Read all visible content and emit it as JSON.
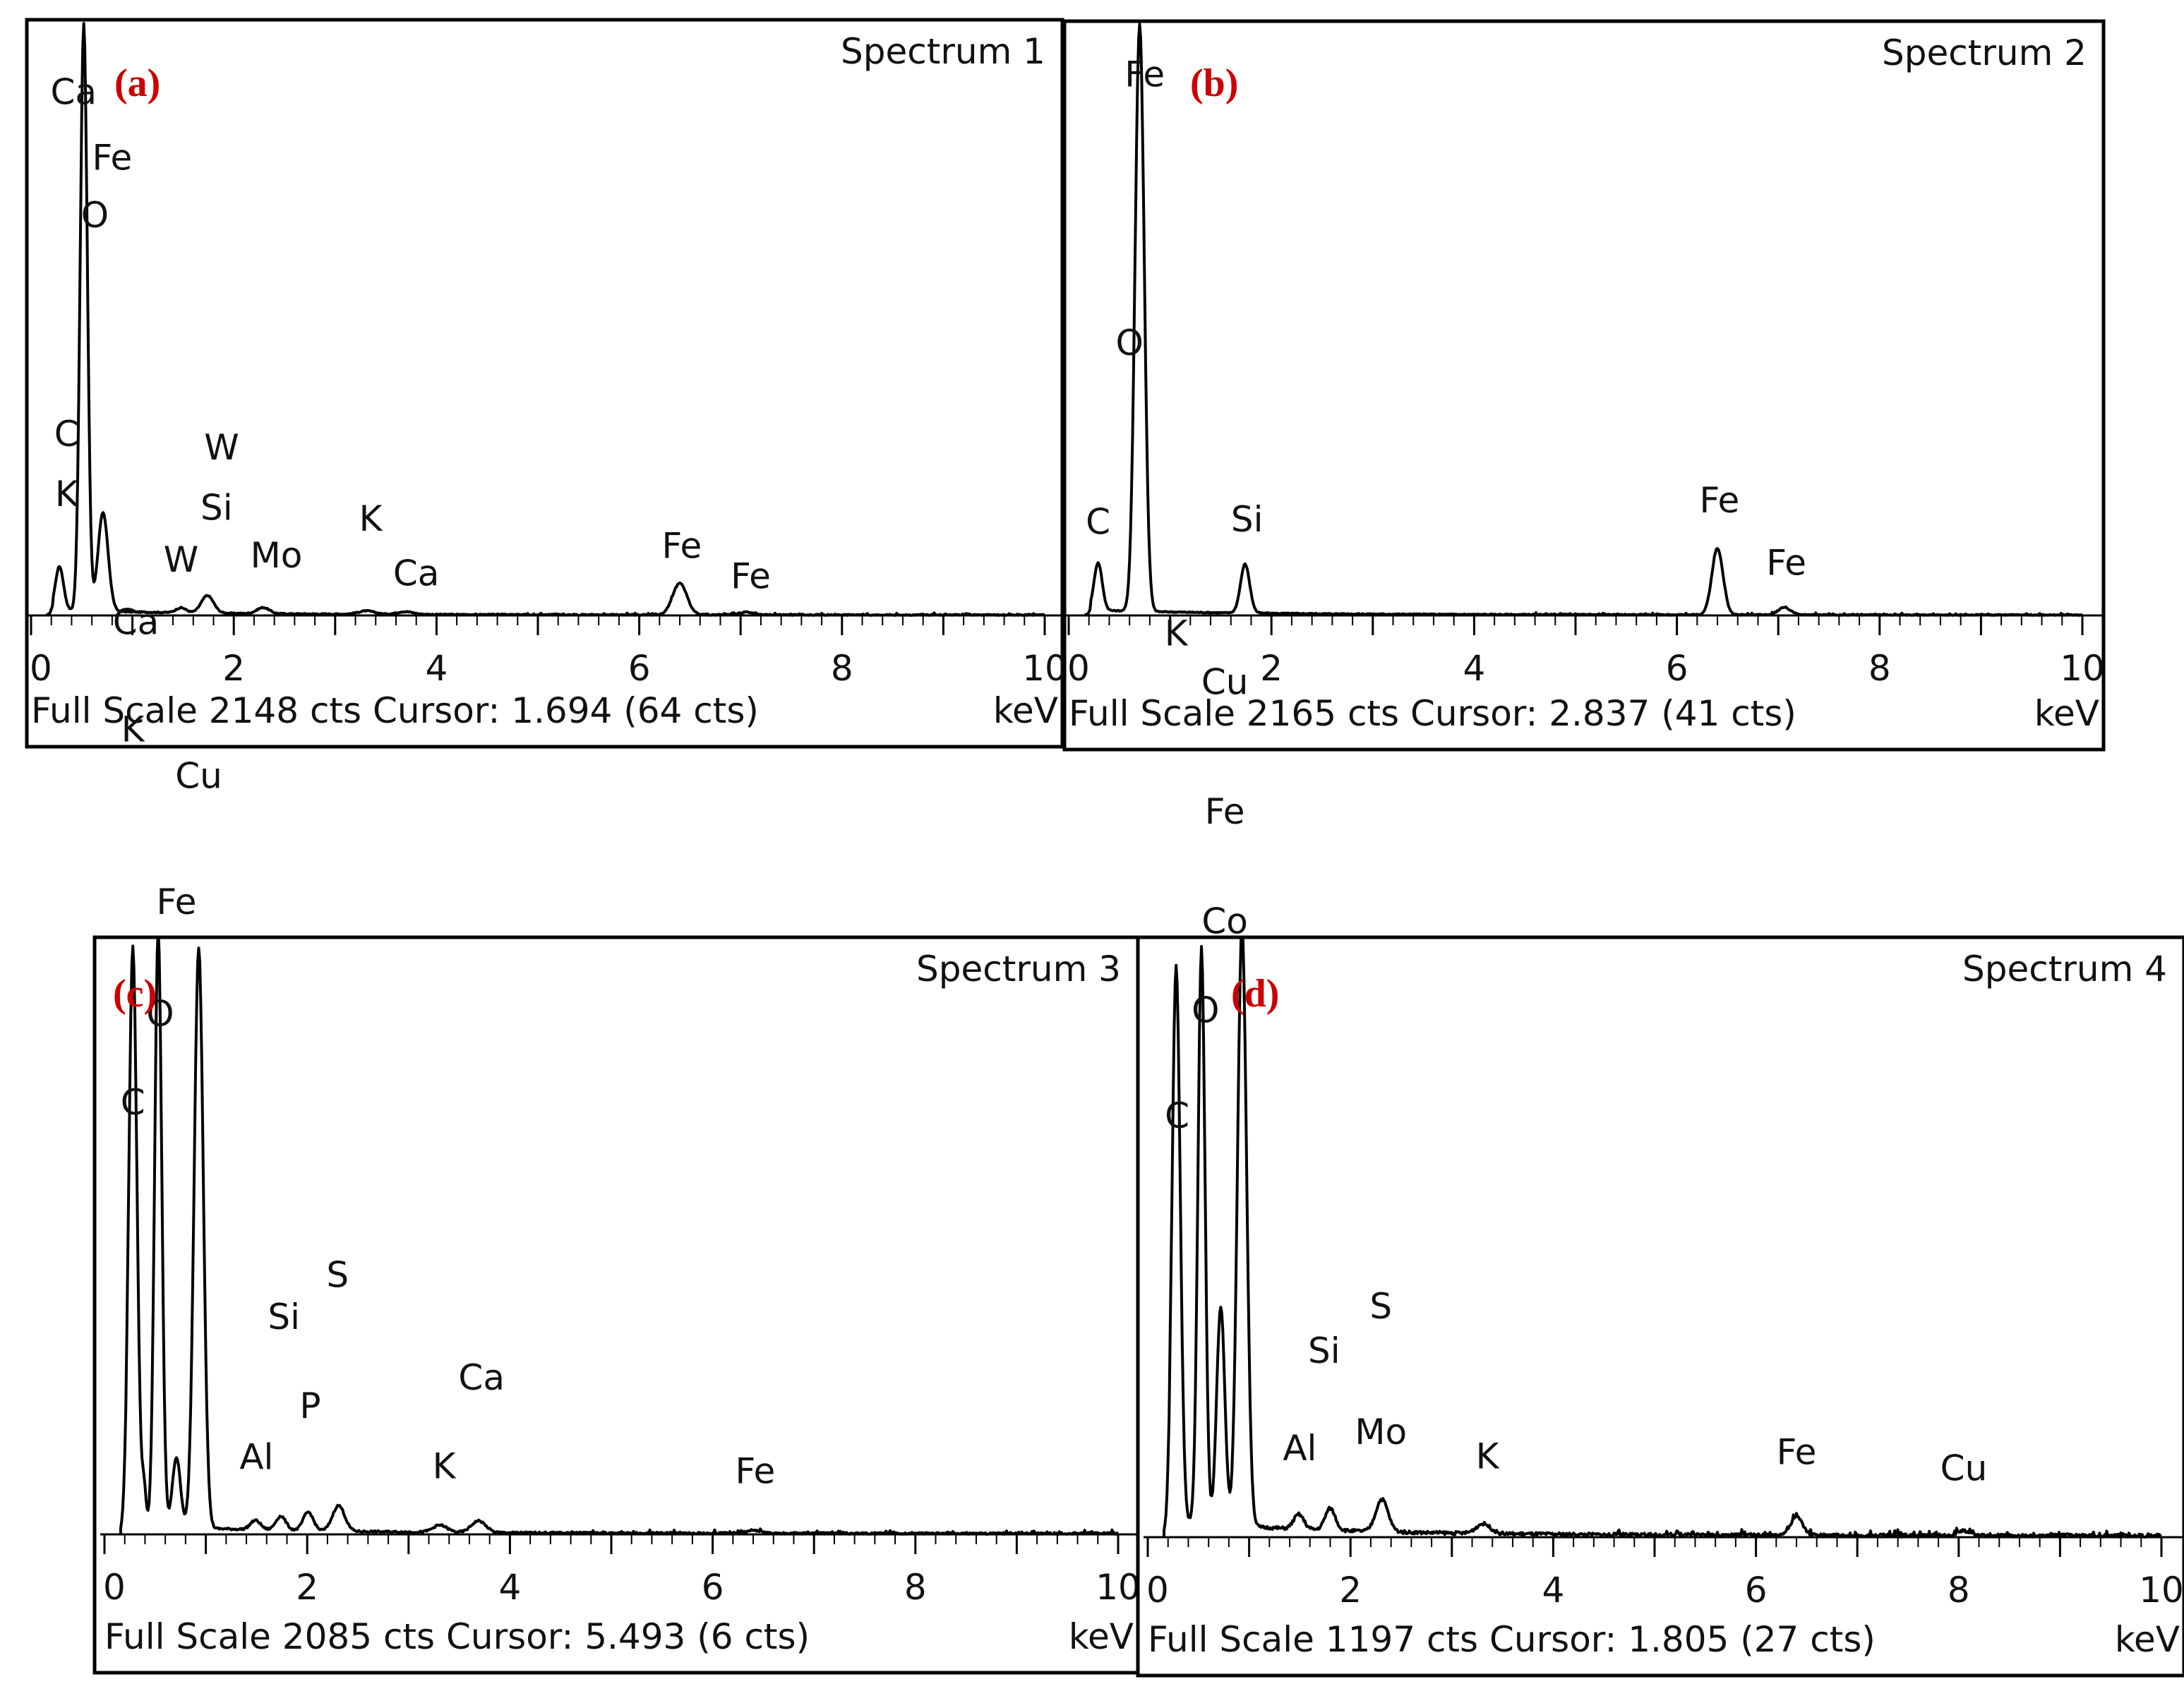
{
  "colors": {
    "panel_letter": "#cc0000",
    "line": "#000000",
    "text": "#111111"
  },
  "chart_data": [
    {
      "type": "line",
      "panel_letter": "(a)",
      "title": "Spectrum 1",
      "footer_text": "Full Scale 2148 cts Cursor: 1.694  (64 cts)",
      "unit_label": "keV",
      "x_ticks": [
        "0",
        "2",
        "4",
        "6",
        "8",
        "10"
      ],
      "xlim": [
        0,
        10
      ],
      "cursor_kev": 1.694,
      "peaks": [
        {
          "kev": 0.28,
          "counts": 160,
          "width": 0.04
        },
        {
          "kev": 0.52,
          "counts": 2148,
          "width": 0.035
        },
        {
          "kev": 0.71,
          "counts": 360,
          "width": 0.05
        },
        {
          "kev": 1.48,
          "counts": 18,
          "width": 0.05
        },
        {
          "kev": 1.74,
          "counts": 64,
          "width": 0.06
        },
        {
          "kev": 2.29,
          "counts": 22,
          "width": 0.06
        },
        {
          "kev": 3.31,
          "counts": 12,
          "width": 0.08
        },
        {
          "kev": 3.69,
          "counts": 10,
          "width": 0.08
        },
        {
          "kev": 6.4,
          "counts": 115,
          "width": 0.07
        },
        {
          "kev": 7.06,
          "counts": 10,
          "width": 0.07
        }
      ],
      "peak_labels": [
        {
          "text": "Ca",
          "kev": 0.42,
          "counts": 1870
        },
        {
          "text": "Fe",
          "kev": 0.8,
          "counts": 1630
        },
        {
          "text": "O",
          "kev": 0.63,
          "counts": 1420
        },
        {
          "text": "C",
          "kev": 0.35,
          "counts": 620
        },
        {
          "text": "K",
          "kev": 0.35,
          "counts": 400
        },
        {
          "text": "W",
          "kev": 1.88,
          "counts": 570
        },
        {
          "text": "Si",
          "kev": 1.83,
          "counts": 350
        },
        {
          "text": "W",
          "kev": 1.48,
          "counts": 160
        },
        {
          "text": "Mo",
          "kev": 2.42,
          "counts": 175
        },
        {
          "text": "K",
          "kev": 3.35,
          "counts": 310
        },
        {
          "text": "Ca",
          "kev": 3.8,
          "counts": 110
        },
        {
          "text": "Fe",
          "kev": 6.42,
          "counts": 210
        },
        {
          "text": "Fe",
          "kev": 7.1,
          "counts": 100
        }
      ]
    },
    {
      "type": "line",
      "panel_letter": "(b)",
      "title": "Spectrum 2",
      "footer_text": "Full Scale 2165 cts Cursor: 2.837  (41 cts)",
      "unit_label": "keV",
      "x_ticks": [
        "0",
        "2",
        "4",
        "6",
        "8",
        "10"
      ],
      "xlim": [
        0,
        10
      ],
      "cursor_kev": 2.837,
      "peaks": [
        {
          "kev": 0.29,
          "counts": 175,
          "width": 0.04
        },
        {
          "kev": 0.7,
          "counts": 2165,
          "width": 0.045
        },
        {
          "kev": 1.74,
          "counts": 180,
          "width": 0.045
        },
        {
          "kev": 6.4,
          "counts": 245,
          "width": 0.055
        },
        {
          "kev": 7.06,
          "counts": 28,
          "width": 0.06
        }
      ],
      "peak_labels": [
        {
          "text": "Fe",
          "kev": 0.75,
          "counts": 1950
        },
        {
          "text": "O",
          "kev": 0.6,
          "counts": 960
        },
        {
          "text": "C",
          "kev": 0.29,
          "counts": 300
        },
        {
          "text": "Si",
          "kev": 1.76,
          "counts": 310
        },
        {
          "text": "Fe",
          "kev": 6.42,
          "counts": 380
        },
        {
          "text": "Fe",
          "kev": 7.08,
          "counts": 150
        }
      ]
    },
    {
      "type": "line",
      "panel_letter": "(c)",
      "title": "Spectrum 3",
      "footer_text": "Full Scale 2085 cts Cursor: 5.493  (6 cts)",
      "unit_label": "keV",
      "x_ticks": [
        "0",
        "2",
        "4",
        "6",
        "8",
        "10"
      ],
      "xlim": [
        0,
        10
      ],
      "cursor_kev": 5.493,
      "peaks": [
        {
          "kev": 0.28,
          "counts": 1240,
          "width": 0.04
        },
        {
          "kev": 0.39,
          "counts": 80,
          "width": 0.02
        },
        {
          "kev": 0.53,
          "counts": 1280,
          "width": 0.035
        },
        {
          "kev": 0.71,
          "counts": 150,
          "width": 0.04
        },
        {
          "kev": 0.93,
          "counts": 1245,
          "width": 0.045
        },
        {
          "kev": 1.49,
          "counts": 20,
          "width": 0.05
        },
        {
          "kev": 1.74,
          "counts": 30,
          "width": 0.05
        },
        {
          "kev": 2.01,
          "counts": 40,
          "width": 0.05
        },
        {
          "kev": 2.31,
          "counts": 55,
          "width": 0.06
        },
        {
          "kev": 3.31,
          "counts": 15,
          "width": 0.07
        },
        {
          "kev": 3.69,
          "counts": 25,
          "width": 0.07
        },
        {
          "kev": 6.4,
          "counts": 6,
          "width": 0.07
        }
      ],
      "peak_labels": [
        {
          "text": "Ca",
          "kev": 0.31,
          "counts": 1930
        },
        {
          "text": "K",
          "kev": 0.28,
          "counts": 1700
        },
        {
          "text": "Cu",
          "kev": 0.93,
          "counts": 1600
        },
        {
          "text": "Fe",
          "kev": 0.71,
          "counts": 1330
        },
        {
          "text": "O",
          "kev": 0.55,
          "counts": 1090
        },
        {
          "text": "C",
          "kev": 0.28,
          "counts": 900
        },
        {
          "text": "Si",
          "kev": 1.77,
          "counts": 440
        },
        {
          "text": "S",
          "kev": 2.3,
          "counts": 530
        },
        {
          "text": "P",
          "kev": 2.03,
          "counts": 250
        },
        {
          "text": "Al",
          "kev": 1.5,
          "counts": 140
        },
        {
          "text": "K",
          "kev": 3.35,
          "counts": 120
        },
        {
          "text": "Ca",
          "kev": 3.72,
          "counts": 310
        },
        {
          "text": "Fe",
          "kev": 6.42,
          "counts": 110
        }
      ]
    },
    {
      "type": "line",
      "panel_letter": "(d)",
      "title": "Spectrum 4",
      "footer_text": "Full Scale 1197 cts Cursor: 1.805  (27 cts)",
      "unit_label": "keV",
      "x_ticks": [
        "0",
        "2",
        "4",
        "6",
        "8",
        "10"
      ],
      "xlim": [
        0,
        10
      ],
      "cursor_kev": 1.805,
      "peaks": [
        {
          "kev": 0.28,
          "counts": 685,
          "width": 0.04
        },
        {
          "kev": 0.53,
          "counts": 710,
          "width": 0.035
        },
        {
          "kev": 0.72,
          "counts": 270,
          "width": 0.04
        },
        {
          "kev": 0.93,
          "counts": 740,
          "width": 0.045
        },
        {
          "kev": 1.49,
          "counts": 18,
          "width": 0.05
        },
        {
          "kev": 1.8,
          "counts": 27,
          "width": 0.05
        },
        {
          "kev": 2.31,
          "counts": 40,
          "width": 0.06
        },
        {
          "kev": 3.31,
          "counts": 12,
          "width": 0.07
        },
        {
          "kev": 6.4,
          "counts": 22,
          "width": 0.06
        },
        {
          "kev": 8.05,
          "counts": 6,
          "width": 0.06
        }
      ],
      "peak_labels": [
        {
          "text": "K",
          "kev": 0.28,
          "counts": 1100
        },
        {
          "text": "Cu",
          "kev": 0.76,
          "counts": 1040
        },
        {
          "text": "Fe",
          "kev": 0.76,
          "counts": 880
        },
        {
          "text": "Co",
          "kev": 0.76,
          "counts": 745
        },
        {
          "text": "O",
          "kev": 0.57,
          "counts": 635
        },
        {
          "text": "C",
          "kev": 0.29,
          "counts": 505
        },
        {
          "text": "Si",
          "kev": 1.74,
          "counts": 215
        },
        {
          "text": "S",
          "kev": 2.3,
          "counts": 270
        },
        {
          "text": "Al",
          "kev": 1.5,
          "counts": 95
        },
        {
          "text": "Mo",
          "kev": 2.3,
          "counts": 115
        },
        {
          "text": "K",
          "kev": 3.35,
          "counts": 85
        },
        {
          "text": "Fe",
          "kev": 6.4,
          "counts": 90
        },
        {
          "text": "Cu",
          "kev": 8.05,
          "counts": 70
        }
      ]
    }
  ]
}
